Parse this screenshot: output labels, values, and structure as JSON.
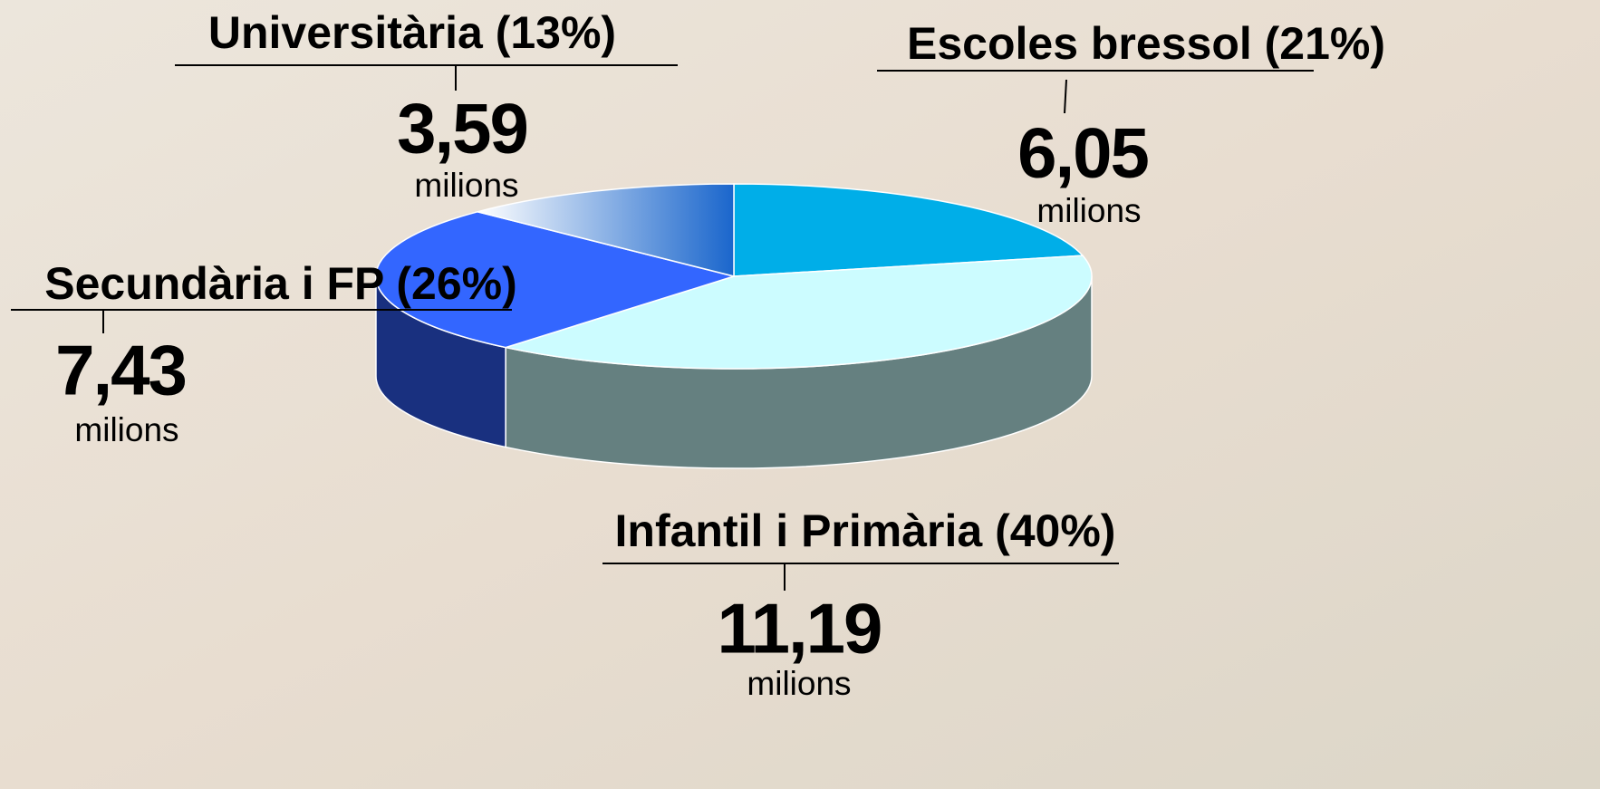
{
  "chart_data": {
    "type": "pie",
    "categories": [
      "Escoles bressol (21%)",
      "Infantil i Primària (40%)",
      "Secundària i FP (26%)",
      "Universitària (13%)"
    ],
    "values": [
      6.05,
      11.19,
      7.43,
      3.59
    ],
    "value_labels": [
      "6,05",
      "11,19",
      "7,43",
      "3,59"
    ],
    "unit": "milions",
    "colors": [
      "#00aee8",
      "#ccfcff",
      "#3366ff",
      "#1a66cc"
    ],
    "side_colors": [
      "#0b6f94",
      "#658080",
      "#19307f",
      "#0f3f80"
    ]
  }
}
